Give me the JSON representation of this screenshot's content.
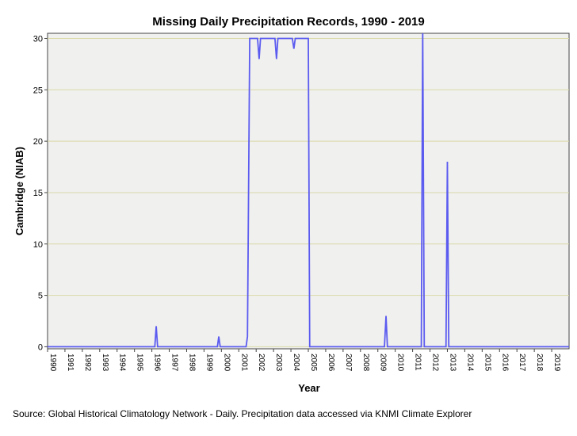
{
  "chart_data": {
    "type": "line",
    "title": "Missing Daily Precipitation Records, 1990 - 2019",
    "xlabel": "Year",
    "ylabel": "Cambridge (NIAB)",
    "source": "Source: Global Historical Climatology Network - Daily. Precipitation data accessed via KNMI Climate Explorer",
    "x": [
      1990,
      1996.17,
      1996.25,
      1996.33,
      1999.77,
      1999.85,
      1999.93,
      2001.42,
      2001.5,
      2001.63,
      2002.08,
      2002.17,
      2002.25,
      2003.08,
      2003.17,
      2003.25,
      2004.08,
      2004.17,
      2004.25,
      2005.0,
      2005.08,
      2009.38,
      2009.47,
      2009.55,
      2011.5,
      2011.58,
      2011.67,
      2012.92,
      2013.0,
      2013.08,
      2020
    ],
    "series": [
      {
        "name": "Cambridge (NIAB)",
        "color": "#5b5bf0",
        "values": [
          0,
          0,
          2,
          0,
          0,
          1,
          0,
          0,
          1,
          30,
          30,
          28,
          30,
          30,
          28,
          30,
          30,
          29,
          30,
          30,
          0,
          0,
          3,
          0,
          0,
          31,
          0,
          0,
          18,
          0,
          0
        ]
      }
    ],
    "xlim": [
      1990,
      2020
    ],
    "xticks": [
      1990,
      1991,
      1992,
      1993,
      1994,
      1995,
      1996,
      1997,
      1998,
      1999,
      2000,
      2001,
      2002,
      2003,
      2004,
      2005,
      2006,
      2007,
      2008,
      2009,
      2010,
      2011,
      2012,
      2013,
      2014,
      2015,
      2016,
      2017,
      2018,
      2019
    ],
    "ylim": [
      -0.2,
      30.5
    ],
    "yticks": [
      0,
      5,
      10,
      15,
      20,
      25,
      30
    ],
    "grid": true
  }
}
